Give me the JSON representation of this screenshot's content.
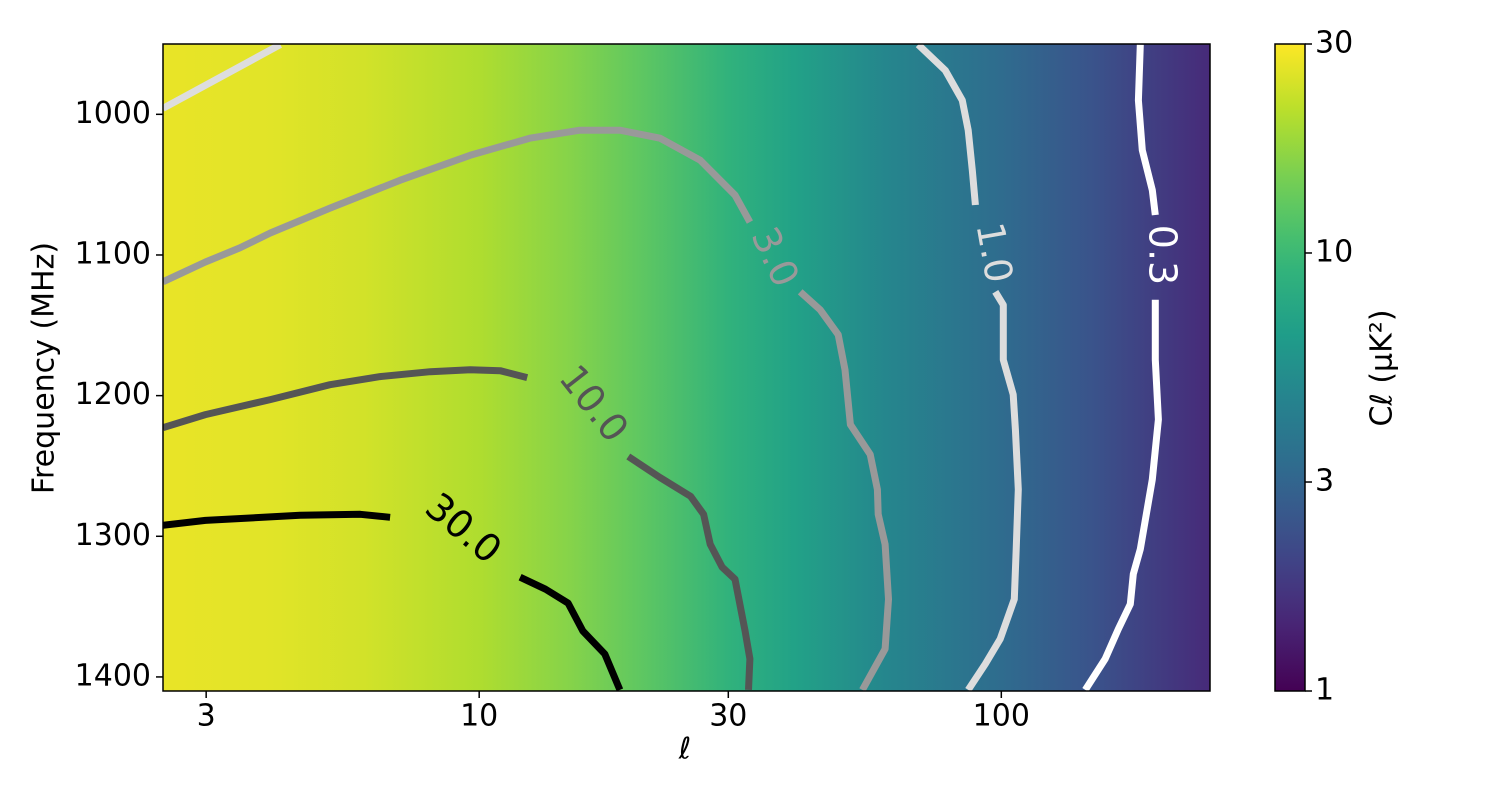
{
  "chart_data": {
    "type": "contour",
    "xlabel": "ℓ",
    "ylabel": "Frequency (MHz)",
    "xscale": "log",
    "xlim": [
      2.48,
      251
    ],
    "xticks": [
      3,
      10,
      30,
      100
    ],
    "ylim": [
      950,
      1410
    ],
    "y_inverted": true,
    "yticks": [
      1000,
      1100,
      1200,
      1300,
      1400
    ],
    "colormap": "viridis",
    "colorbar": {
      "label": "Cℓ (μK²)",
      "scale": "log",
      "lim": [
        1,
        30
      ],
      "ticks": [
        1,
        3,
        10,
        30
      ]
    },
    "background": {
      "ell": [
        2.48,
        4,
        6,
        10,
        15,
        20,
        30,
        40,
        60,
        100,
        150,
        251
      ],
      "values": [
        27,
        26,
        24,
        20,
        16,
        13,
        9,
        7,
        4.8,
        3.3,
        2.4,
        1.5
      ]
    },
    "contours": [
      {
        "level": 30,
        "label": "30.0",
        "color": "#000000",
        "ell": [
          2.48,
          2.99,
          4.54,
          5.92,
          6.75,
          null,
          11.98,
          13.4,
          14.8,
          15.8,
          17.4,
          18.6
        ],
        "freq": [
          1292.2,
          1288.7,
          1285.1,
          1284.4,
          1286.5,
          null,
          1329.1,
          1337.6,
          1347.5,
          1367.4,
          1383.7,
          1409.2
        ]
      },
      {
        "level": 10,
        "label": "10.0",
        "color": "#555555",
        "ell": [
          2.48,
          2.99,
          3.98,
          5.18,
          6.46,
          8.06,
          9.61,
          10.97,
          12.36,
          null,
          19.3,
          22.2,
          25.4,
          26.9,
          27.7,
          29.2,
          30.9,
          32.3,
          33.0,
          32.8
        ],
        "freq": [
          1222.7,
          1213.5,
          1202.8,
          1192.2,
          1186.5,
          1183.0,
          1181.6,
          1182.3,
          1187.2,
          null,
          1243.3,
          1258.2,
          1271.6,
          1284.4,
          1305.7,
          1322.0,
          1330.5,
          1367.4,
          1387.2,
          1409.2
        ]
      },
      {
        "level": 3,
        "label": "3.0",
        "color": "#999999",
        "ell": [
          2.48,
          2.99,
          3.48,
          3.98,
          5.18,
          7.06,
          9.61,
          12.5,
          15.6,
          18.6,
          22.2,
          26.5,
          30.9,
          33.0,
          null,
          41.2,
          45.0,
          48.7,
          50.2,
          51.4,
          56.1,
          57.9,
          58.1,
          59.9,
          60.8,
          59.9,
          54.2
        ],
        "freq": [
          1119.1,
          1105.0,
          1095.0,
          1084.4,
          1066.7,
          1046.8,
          1029.1,
          1017.0,
          1011.3,
          1011.3,
          1017.0,
          1032.6,
          1057.4,
          1076.6,
          null,
          1126.2,
          1139.0,
          1156.7,
          1181.6,
          1220.6,
          1241.8,
          1266.7,
          1284.4,
          1305.7,
          1344.7,
          1380.1,
          1409.2
        ]
      },
      {
        "level": 1,
        "label": "1.0",
        "color": "#dddddd",
        "ell": [
          69.3,
          78.1,
          84.2,
          86.4,
          88.0,
          89.2,
          null,
          97.4,
          100.9,
          100.9,
          105.4,
          106.4,
          107.8,
          106.8,
          105.9,
          99.5,
          93.2,
          86.4
        ],
        "freq": [
          950.4,
          968.8,
          990.1,
          1011.3,
          1039.7,
          1064.5,
          null,
          1126.2,
          1135.5,
          1174.5,
          1199.3,
          1224.1,
          1266.7,
          1309.2,
          1344.7,
          1373.0,
          1390.8,
          1409.2
        ]
      },
      {
        "level": 0.3,
        "label": "0.3",
        "color": "#ffffff",
        "ell": [
          184.6,
          183.0,
          186.2,
          194.6,
          197.2,
          null,
          197.2,
          197.2,
          199.9,
          194.6,
          184.6,
          179.0,
          176.6,
          167.5,
          158.1,
          144.8
        ],
        "freq": [
          950.4,
          990.1,
          1025.5,
          1053.9,
          1071.6,
          null,
          1131.9,
          1174.5,
          1217.0,
          1259.6,
          1309.2,
          1326.9,
          1348.2,
          1366.0,
          1387.2,
          1409.2
        ]
      },
      {
        "color": "#dddddd",
        "ell": [
          2.48,
          4.16
        ],
        "freq": [
          995.7,
          950.4
        ]
      }
    ]
  }
}
